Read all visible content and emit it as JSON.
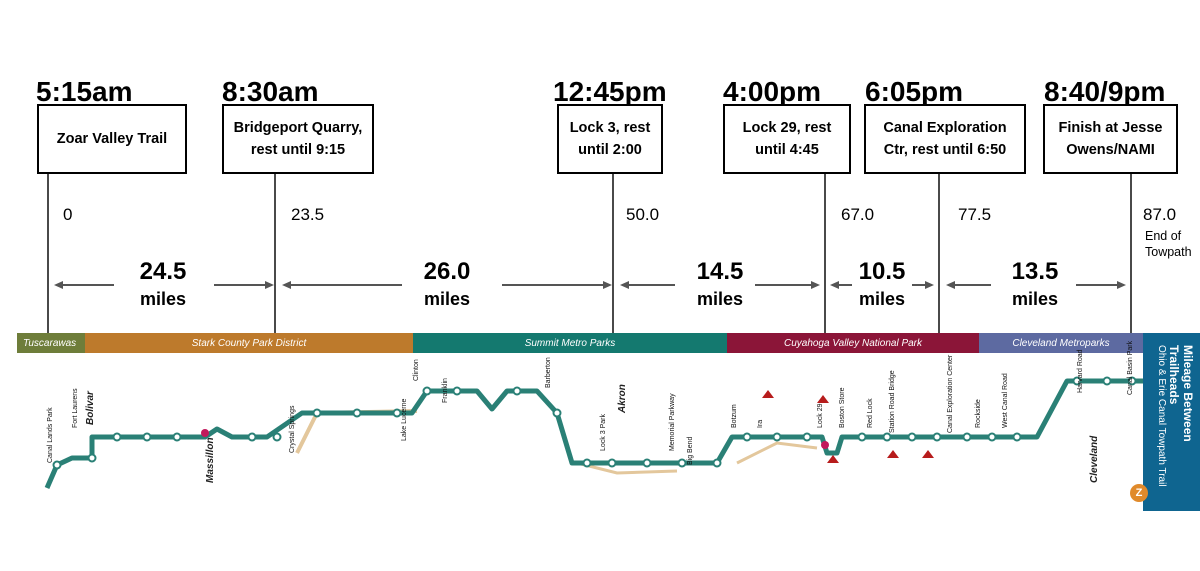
{
  "checkpoints": [
    {
      "time": "5:15am",
      "label": "Zoar Valley Trail",
      "mile": "0"
    },
    {
      "time": "8:30am",
      "label": "Bridgeport Quarry,\nrest until 9:15",
      "mile": "23.5"
    },
    {
      "time": "12:45pm",
      "label": "Lock 3, rest\nuntil 2:00",
      "mile": "50.0"
    },
    {
      "time": "4:00pm",
      "label": "Lock 29, rest\nuntil 4:45",
      "mile": "67.0"
    },
    {
      "time": "6:05pm",
      "label": "Canal Exploration\nCtr, rest until 6:50",
      "mile": "77.5"
    },
    {
      "time": "8:40/9pm",
      "label": "Finish at Jesse\nOwens/NAMI",
      "mile": "87.0"
    }
  ],
  "end_note": "End of\nTowpath",
  "segments": [
    {
      "distance": "24.5",
      "unit": "miles"
    },
    {
      "distance": "26.0",
      "unit": "miles"
    },
    {
      "distance": "14.5",
      "unit": "miles"
    },
    {
      "distance": "10.5",
      "unit": "miles"
    },
    {
      "distance": "13.5",
      "unit": "miles"
    }
  ],
  "map": {
    "districts": [
      {
        "name": "Tuscarawas",
        "color": "#6e7d3a"
      },
      {
        "name": "Stark County Park District",
        "color": "#bd7a2c"
      },
      {
        "name": "Summit Metro Parks",
        "color": "#14796f"
      },
      {
        "name": "Cuyahoga Valley National Park",
        "color": "#8b1538"
      },
      {
        "name": "Cleveland Metroparks",
        "color": "#5d6aa1"
      }
    ],
    "title": "Mileage Between Trailheads",
    "subtitle": "Ohio & Erie Canal Towpath Trail",
    "cities": [
      "Bolivar",
      "Massillon",
      "Akron",
      "Cleveland"
    ],
    "stations": [
      "Canal Lands Park",
      "Fort Laurens",
      "Crystal Springs",
      "Lake Lucerne",
      "Clinton",
      "Franklin",
      "Barberton",
      "Lock 3 Park",
      "Memorial Parkway",
      "Big Bend",
      "Botzum",
      "Ira",
      "Lock 29",
      "Boston Store",
      "Red Lock",
      "Station Road Bridge",
      "Canal Exploration Center",
      "Rockside",
      "West Canal Road",
      "Harvard Road",
      "Canal Basin Park"
    ],
    "line_color": "#2a8076",
    "trail_highlight": "#e3c79c"
  }
}
